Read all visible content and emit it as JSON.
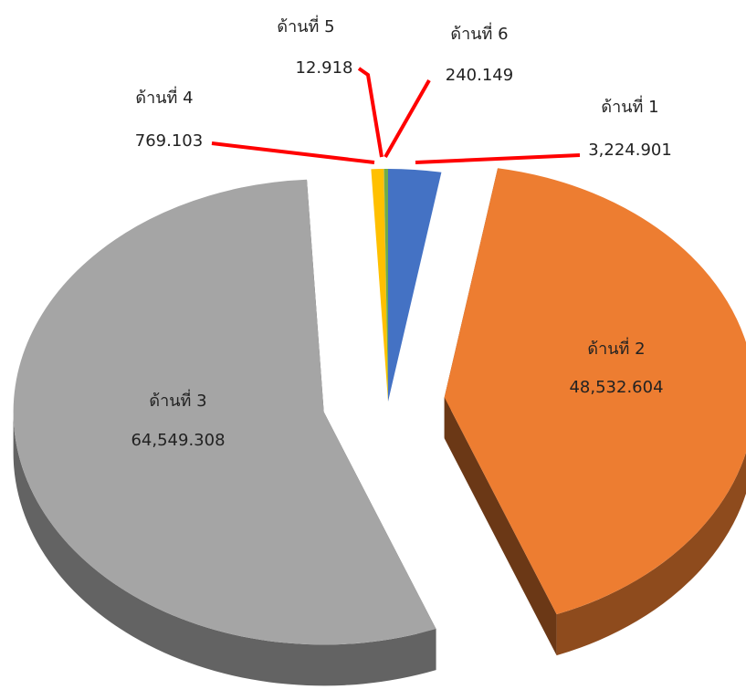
{
  "chart_data": {
    "type": "pie",
    "categories": [
      "ด้านที่ 1",
      "ด้านที่ 2",
      "ด้านที่ 3",
      "ด้านที่ 4",
      "ด้านที่ 5",
      "ด้านที่ 6"
    ],
    "values": [
      3224.901,
      48532.604,
      64549.308,
      769.103,
      12.918,
      240.149
    ],
    "value_labels": [
      "3,224.901",
      "48,532.604",
      "64,549.308",
      "769.103",
      "12.918",
      "240.149"
    ],
    "colors": [
      "#4472c4",
      "#ed7d31",
      "#a5a5a5",
      "#ffc000",
      "#5b9bd5",
      "#70ad47"
    ]
  }
}
